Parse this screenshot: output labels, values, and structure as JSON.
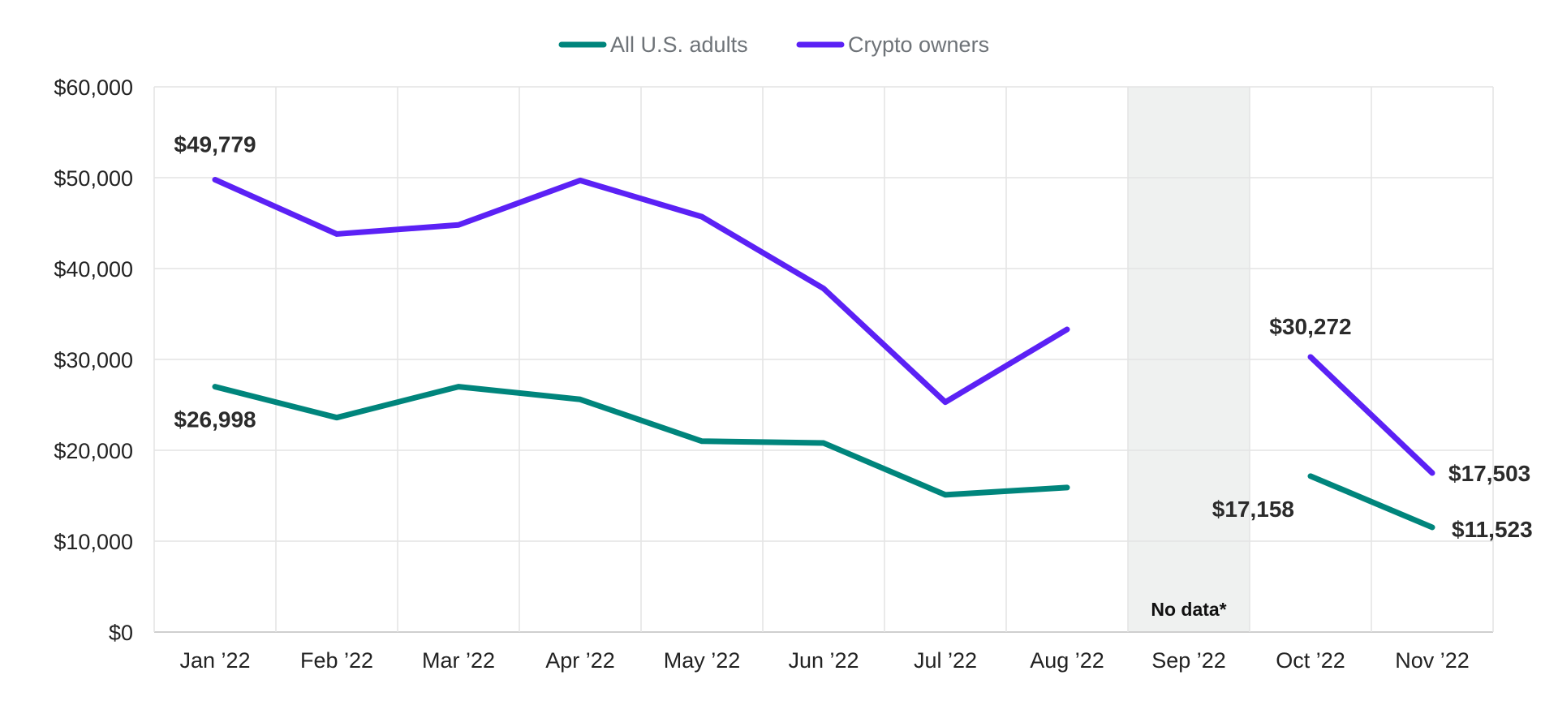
{
  "chart_data": {
    "type": "line",
    "title": "",
    "xlabel": "",
    "ylabel": "",
    "categories": [
      "Jan ’22",
      "Feb ’22",
      "Mar ’22",
      "Apr ’22",
      "May ’22",
      "Jun ’22",
      "Jul ’22",
      "Aug ’22",
      "Sep ’22",
      "Oct ’22",
      "Nov ’22"
    ],
    "ylim": [
      0,
      60000
    ],
    "yticks": [
      0,
      10000,
      20000,
      30000,
      40000,
      50000,
      60000
    ],
    "ytick_labels": [
      "$0",
      "$10,000",
      "$20,000",
      "$30,000",
      "$40,000",
      "$50,000",
      "$60,000"
    ],
    "grid": true,
    "legend_position": "top-center",
    "series": [
      {
        "name": "All U.S. adults",
        "color": "#00857c",
        "values": [
          26998,
          23600,
          27000,
          25600,
          21000,
          20800,
          15100,
          15900,
          null,
          17158,
          11523
        ]
      },
      {
        "name": "Crypto owners",
        "color": "#5b21f5",
        "values": [
          49779,
          43800,
          44800,
          49700,
          45700,
          37800,
          25300,
          33300,
          null,
          30272,
          17503
        ]
      }
    ],
    "annotations": [
      {
        "series": 1,
        "index": 0,
        "text": "$49,779"
      },
      {
        "series": 0,
        "index": 0,
        "text": "$26,998"
      },
      {
        "series": 1,
        "index": 9,
        "text": "$30,272"
      },
      {
        "series": 0,
        "index": 9,
        "text": "$17,158"
      },
      {
        "series": 1,
        "index": 10,
        "text": "$17,503"
      },
      {
        "series": 0,
        "index": 10,
        "text": "$11,523"
      }
    ],
    "shaded_region": {
      "index": 8,
      "label": "No data*",
      "color": "#eff1f0"
    }
  }
}
